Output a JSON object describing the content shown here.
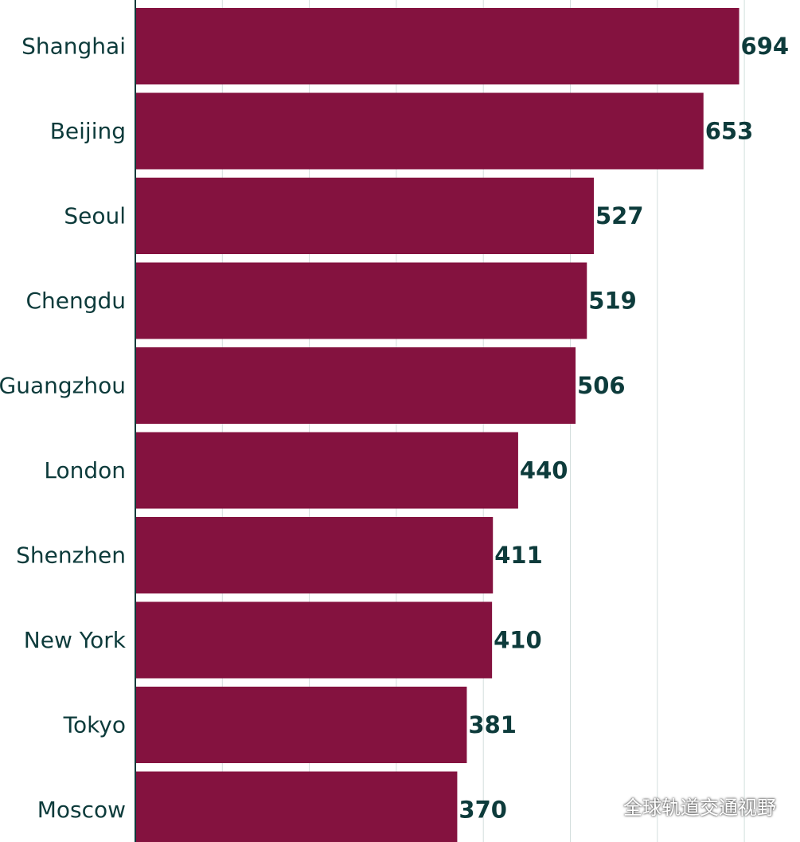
{
  "chart_data": {
    "type": "bar",
    "orientation": "horizontal",
    "categories": [
      "Shanghai",
      "Beijing",
      "Seoul",
      "Chengdu",
      "Guangzhou",
      "London",
      "Shenzhen",
      "New York",
      "Tokyo",
      "Moscow"
    ],
    "values": [
      694,
      653,
      527,
      519,
      506,
      440,
      411,
      410,
      381,
      370
    ],
    "title": "",
    "xlabel": "",
    "ylabel": "",
    "xlim": [
      0,
      700
    ],
    "grid": true,
    "gridlines_at": [
      100,
      200,
      300,
      400,
      500,
      600,
      700
    ],
    "bar_color": "#84123f",
    "text_color": "#0d3b3b",
    "data_labels": true
  },
  "watermark": {
    "text": "全球轨道交通视野",
    "icon": "wechat-icon"
  }
}
